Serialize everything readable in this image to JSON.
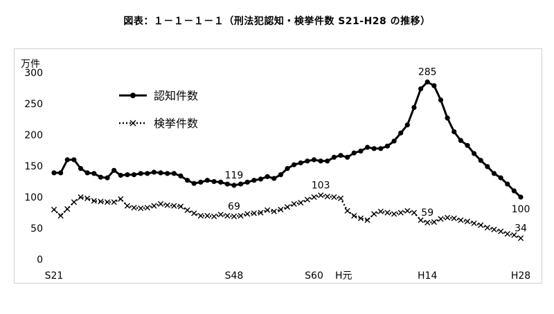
{
  "title": "図表：１－１－１－１（刑法犯認知・検挙件数 S21-H28 の推移）",
  "chart_data": {
    "type": "line",
    "ylabel": "万件",
    "ylim": [
      0,
      300
    ],
    "yticks": [
      0,
      50,
      100,
      150,
      200,
      250,
      300
    ],
    "x": [
      1946,
      1947,
      1948,
      1949,
      1950,
      1951,
      1952,
      1953,
      1954,
      1955,
      1956,
      1957,
      1958,
      1959,
      1960,
      1961,
      1962,
      1963,
      1964,
      1965,
      1966,
      1967,
      1968,
      1969,
      1970,
      1971,
      1972,
      1973,
      1974,
      1975,
      1976,
      1977,
      1978,
      1979,
      1980,
      1981,
      1982,
      1983,
      1984,
      1985,
      1986,
      1987,
      1988,
      1989,
      1990,
      1991,
      1992,
      1993,
      1994,
      1995,
      1996,
      1997,
      1998,
      1999,
      2000,
      2001,
      2002,
      2003,
      2004,
      2005,
      2006,
      2007,
      2008,
      2009,
      2010,
      2011,
      2012,
      2013,
      2014,
      2015,
      2016
    ],
    "xticks": [
      {
        "x": 1946,
        "label": "S21"
      },
      {
        "x": 1973,
        "label": "S48"
      },
      {
        "x": 1985,
        "label": "S60"
      },
      {
        "x": 1989,
        "label": "H元"
      },
      {
        "x": 2002,
        "label": "H14"
      },
      {
        "x": 2016,
        "label": "H28"
      }
    ],
    "legend_position": "top-left",
    "grid": false,
    "series": [
      {
        "name": "認知件数",
        "style": "solid-dot",
        "color": "#000000",
        "values": [
          139,
          139,
          160,
          160,
          146,
          139,
          138,
          132,
          131,
          143,
          135,
          136,
          136,
          138,
          138,
          140,
          139,
          138,
          138,
          134,
          127,
          122,
          124,
          127,
          125,
          124,
          121,
          119,
          121,
          124,
          127,
          129,
          133,
          130,
          136,
          146,
          152,
          155,
          158,
          160,
          158,
          158,
          164,
          167,
          164,
          171,
          174,
          180,
          178,
          178,
          182,
          190,
          203,
          216,
          244,
          274,
          285,
          279,
          256,
          227,
          205,
          191,
          183,
          170,
          159,
          149,
          138,
          131,
          121,
          110,
          100
        ]
      },
      {
        "name": "検挙件数",
        "style": "dotted-x",
        "color": "#000000",
        "values": [
          80,
          70,
          81,
          92,
          100,
          98,
          94,
          93,
          92,
          92,
          97,
          86,
          83,
          82,
          83,
          86,
          89,
          87,
          86,
          85,
          79,
          74,
          70,
          70,
          69,
          72,
          70,
          69,
          70,
          73,
          74,
          75,
          79,
          77,
          80,
          84,
          89,
          91,
          96,
          100,
          103,
          101,
          100,
          98,
          78,
          70,
          66,
          63,
          73,
          77,
          75,
          73,
          75,
          78,
          75,
          63,
          59,
          60,
          65,
          67,
          66,
          63,
          61,
          58,
          55,
          51,
          48,
          45,
          41,
          39,
          34
        ]
      }
    ],
    "annotations": [
      {
        "x": 1973,
        "series": 0,
        "label": "119"
      },
      {
        "x": 1973,
        "series": 1,
        "label": "69"
      },
      {
        "x": 1986,
        "series": 1,
        "label": "103"
      },
      {
        "x": 2002,
        "series": 0,
        "label": "285"
      },
      {
        "x": 2002,
        "series": 1,
        "label": "59"
      },
      {
        "x": 2016,
        "series": 0,
        "label": "100"
      },
      {
        "x": 2016,
        "series": 1,
        "label": "34"
      }
    ]
  }
}
